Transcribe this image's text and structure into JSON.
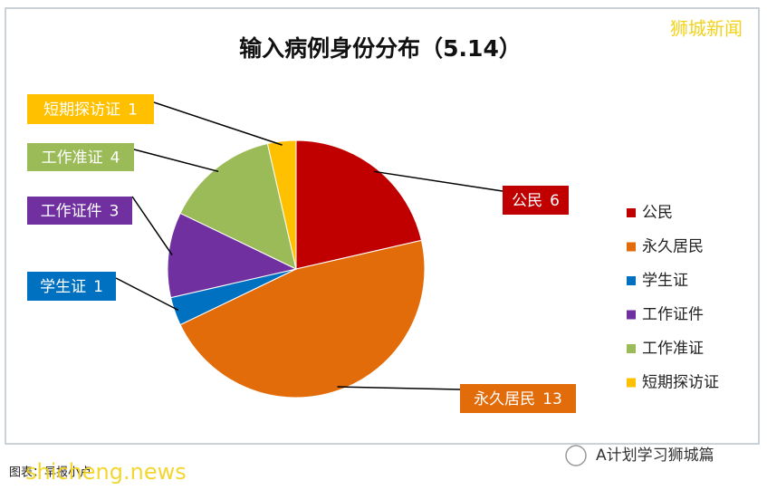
{
  "chart_data": {
    "type": "pie",
    "title": "输入病例身份分布（5.14）",
    "categories": [
      "公民",
      "永久居民",
      "学生证",
      "工作证件",
      "工作准证",
      "短期探访证"
    ],
    "values": [
      6,
      13,
      1,
      3,
      4,
      1
    ],
    "colors": [
      "#c00000",
      "#e36c0a",
      "#0070c0",
      "#7030a0",
      "#9bbb59",
      "#ffc000"
    ],
    "legend": "right"
  },
  "watermarks": {
    "brand": "狮城新闻",
    "site": "shicheng.news",
    "credit": "图表：早报小卢",
    "account": "A计划学习狮城篇"
  }
}
